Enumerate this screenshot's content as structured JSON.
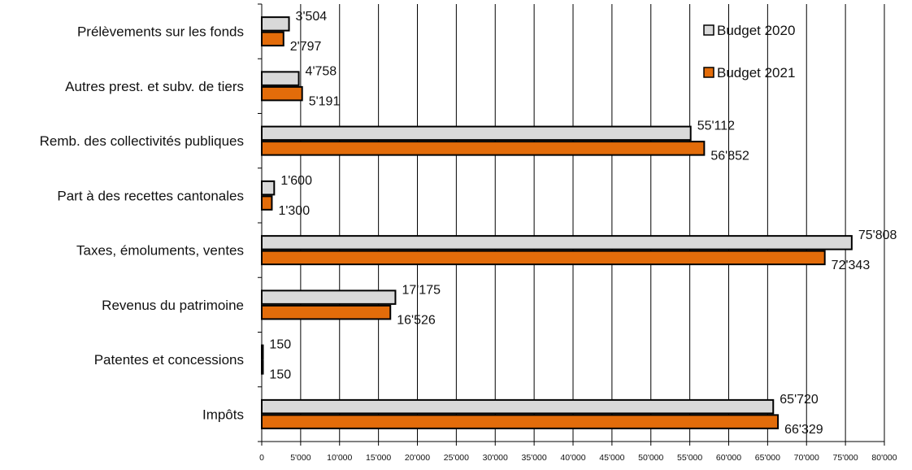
{
  "chart_data": {
    "type": "bar",
    "orientation": "horizontal",
    "categories": [
      "Prélèvements sur les fonds",
      "Autres prest. et subv. de tiers",
      "Remb. des collectivités publiques",
      "Part à des recettes cantonales",
      "Taxes, émoluments, ventes",
      "Revenus du patrimoine",
      "Patentes et concessions",
      "Impôts"
    ],
    "series": [
      {
        "name": "Budget 2020",
        "color": "#d9d9d9",
        "values": [
          3504,
          4758,
          55112,
          1600,
          75808,
          17175,
          150,
          65720
        ],
        "labels": [
          "3'504",
          "4'758",
          "55'112",
          "1'600",
          "75'808",
          "17'175",
          "150",
          "65'720"
        ]
      },
      {
        "name": "Budget 2021",
        "color": "#e36c0a",
        "values": [
          2797,
          5191,
          56852,
          1300,
          72343,
          16526,
          150,
          66329
        ],
        "labels": [
          "2'797",
          "5'191",
          "56'852",
          "1'300",
          "72'343",
          "16'526",
          "150",
          "66'329"
        ]
      }
    ],
    "xlim": [
      0,
      80000
    ],
    "xticks": [
      0,
      5000,
      10000,
      15000,
      20000,
      25000,
      30000,
      35000,
      40000,
      45000,
      50000,
      55000,
      60000,
      65000,
      70000,
      75000,
      80000
    ],
    "xtick_labels": [
      "0",
      "5'000",
      "10'000",
      "15'000",
      "20'000",
      "25'000",
      "30'000",
      "35'000",
      "40'000",
      "45'000",
      "50'000",
      "55'000",
      "60'000",
      "65'000",
      "70'000",
      "75'000",
      "80'000"
    ],
    "title": "",
    "xlabel": "",
    "ylabel": "",
    "grid": "vertical",
    "legend_position": "top-right"
  }
}
